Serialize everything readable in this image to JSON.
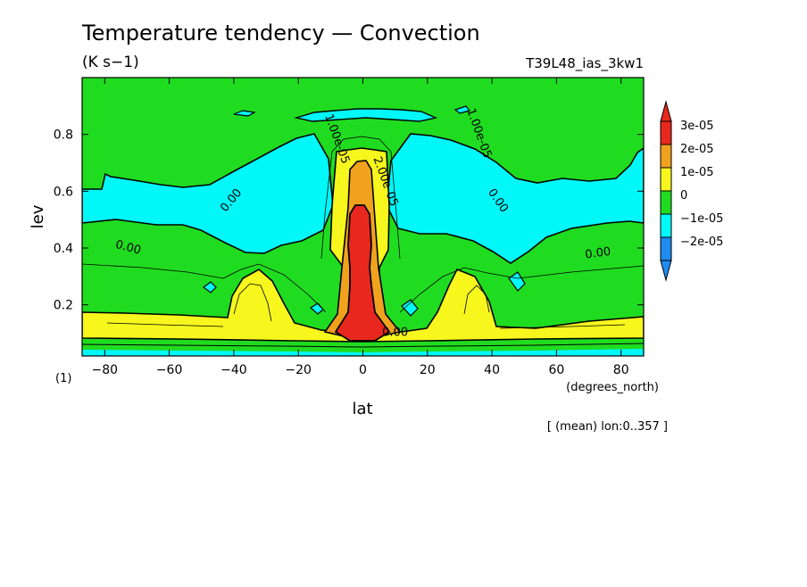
{
  "chart_data": {
    "type": "heatmap",
    "title": "Temperature tendency — Convection",
    "units": "(K s−1)",
    "experiment": "T39L48_ias_3kw1",
    "xlabel": "lat",
    "xunits": "(degrees_north)",
    "ylabel": "lev",
    "yunits": "(1)",
    "mean_note": "[ (mean) lon:0..357 ]",
    "xlim": [
      -87,
      87
    ],
    "ylim": [
      1.0,
      0.02
    ],
    "x_ticks": [
      -80,
      -60,
      -40,
      -20,
      0,
      20,
      40,
      60,
      80
    ],
    "x_tick_labels": [
      "−80",
      "−60",
      "−40",
      "−20",
      "0",
      "20",
      "40",
      "60",
      "80"
    ],
    "y_ticks": [
      0.2,
      0.4,
      0.6,
      0.8
    ],
    "y_tick_labels": [
      "0.2",
      "0.4",
      "0.6",
      "0.8"
    ],
    "levels": [
      -2e-05,
      -1e-05,
      0,
      1e-05,
      2e-05,
      3e-05
    ],
    "colorbar": [
      {
        "label": "3e-05",
        "color": "#e8281e"
      },
      {
        "label": "2e-05",
        "color": "#f0a21e"
      },
      {
        "label": "1e-05",
        "color": "#f7f71e"
      },
      {
        "label": "0",
        "color": "#20dc20"
      },
      {
        "label": "−1e-05",
        "color": "#00f8f8"
      },
      {
        "label": "−2e-05",
        "color": "#1e8cf0"
      }
    ],
    "contour_labels": [
      {
        "text": "0.00",
        "lat": 10,
        "lev": 0.09
      },
      {
        "text": "0.00",
        "lat": -73,
        "lev": 0.39
      },
      {
        "text": "0.00",
        "lat": 73,
        "lev": 0.37
      },
      {
        "text": "0.00",
        "lat": -40,
        "lev": 0.56
      },
      {
        "text": "0.00",
        "lat": 41,
        "lev": 0.56
      },
      {
        "text": "1.00e-05",
        "lat": -9,
        "lev": 0.78
      },
      {
        "text": "2.00e-05",
        "lat": 6,
        "lev": 0.63
      },
      {
        "text": "1.00e-05",
        "lat": 35,
        "lev": 0.8
      }
    ]
  }
}
